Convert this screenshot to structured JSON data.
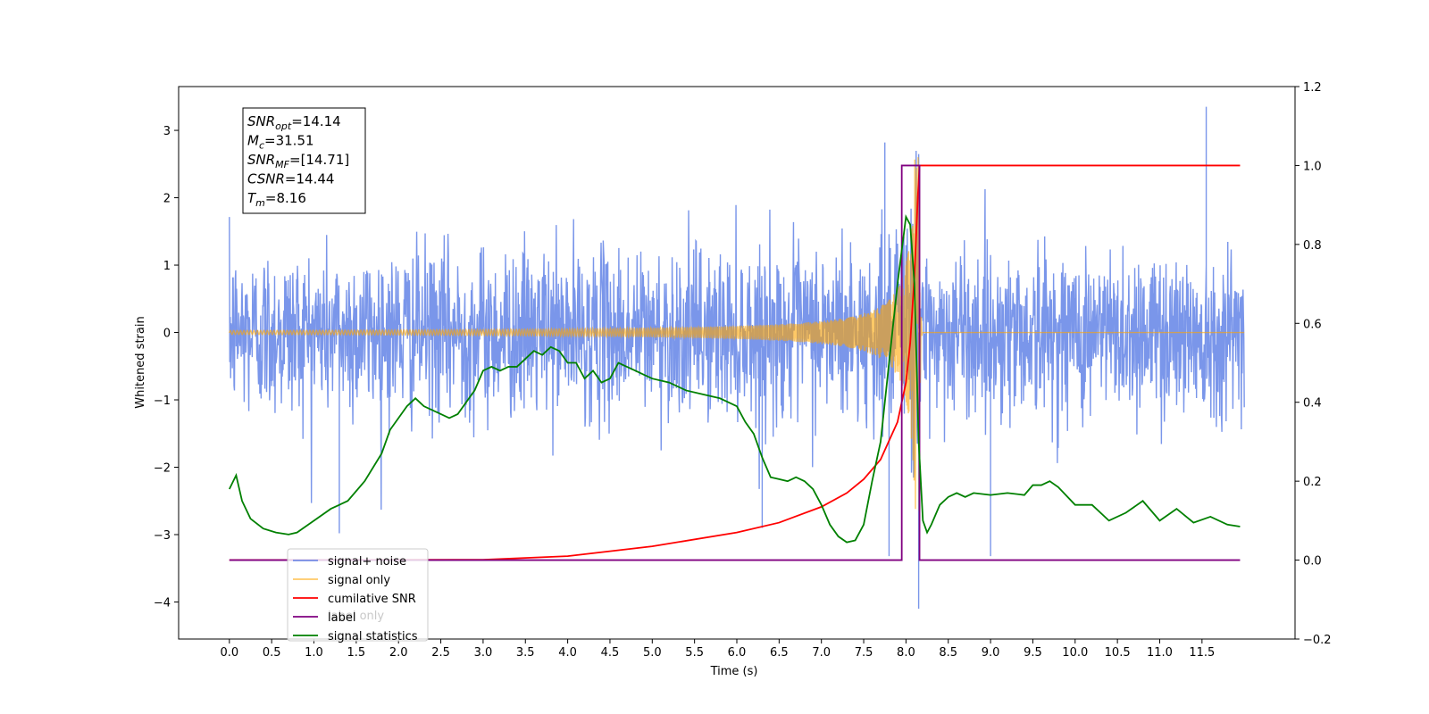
{
  "chart_data": {
    "type": "line",
    "xlabel": "Time (s)",
    "ylabel_left": "Whitened strain",
    "xlim": [
      -0.6,
      12.6
    ],
    "ylim_left": [
      -4.55,
      3.65
    ],
    "ylim_right": [
      -0.2,
      1.2
    ],
    "x_ticks": [
      "0.0",
      "0.5",
      "1.0",
      "1.5",
      "2.0",
      "2.5",
      "3.0",
      "3.5",
      "4.0",
      "4.5",
      "5.0",
      "5.5",
      "6.0",
      "6.5",
      "7.0",
      "7.5",
      "8.0",
      "8.5",
      "9.0",
      "9.5",
      "10.0",
      "10.5",
      "11.0",
      "11.5"
    ],
    "y_ticks_left": [
      "3",
      "2",
      "1",
      "0",
      "−1",
      "−2",
      "−3",
      "−4"
    ],
    "y_ticks_right": [
      "1.2",
      "1.0",
      "0.8",
      "0.6",
      "0.4",
      "0.2",
      "0.0",
      "−0.2"
    ],
    "colors": {
      "signal_noise": "#4169e1",
      "signal_only": "#ffa500",
      "cumulative_snr": "#ff0000",
      "label": "#800080",
      "signal_statistics": "#008000"
    },
    "noise_amplitude": 1.35,
    "noise_spikes": [
      {
        "x": 1.3,
        "y": -2.98
      },
      {
        "x": 7.8,
        "y": -3.32
      },
      {
        "x": 8.15,
        "y": -4.1
      },
      {
        "x": 9.0,
        "y": -3.32
      },
      {
        "x": 11.55,
        "y": 3.35
      },
      {
        "x": 7.75,
        "y": 2.82
      },
      {
        "x": 6.3,
        "y": -2.9
      }
    ],
    "signal_only": {
      "t_merger": 8.16,
      "base_amp": 0.03,
      "peak": 2.65
    },
    "cumulative_snr": {
      "x": [
        0.0,
        3.0,
        4.0,
        5.0,
        6.0,
        6.5,
        7.0,
        7.3,
        7.5,
        7.7,
        7.9,
        8.0,
        8.05,
        8.1,
        8.14,
        8.16,
        11.95
      ],
      "y": [
        0.0,
        0.001,
        0.01,
        0.035,
        0.07,
        0.095,
        0.135,
        0.17,
        0.205,
        0.255,
        0.35,
        0.45,
        0.55,
        0.72,
        0.92,
        1.0,
        1.0
      ]
    },
    "label": {
      "x": [
        0.0,
        7.95,
        7.95,
        8.16,
        8.16,
        11.95
      ],
      "y": [
        0.0,
        0.0,
        1.0,
        1.0,
        0.0,
        0.0
      ]
    },
    "signal_statistics": {
      "x": [
        0.0,
        0.08,
        0.15,
        0.25,
        0.4,
        0.55,
        0.7,
        0.8,
        0.9,
        1.0,
        1.2,
        1.4,
        1.6,
        1.8,
        1.9,
        2.0,
        2.1,
        2.2,
        2.3,
        2.5,
        2.6,
        2.7,
        2.8,
        2.9,
        3.0,
        3.1,
        3.2,
        3.3,
        3.4,
        3.5,
        3.6,
        3.7,
        3.8,
        3.9,
        4.0,
        4.1,
        4.2,
        4.3,
        4.4,
        4.5,
        4.6,
        4.7,
        4.8,
        4.9,
        5.0,
        5.2,
        5.4,
        5.6,
        5.8,
        6.0,
        6.1,
        6.2,
        6.3,
        6.4,
        6.5,
        6.6,
        6.7,
        6.8,
        6.9,
        7.0,
        7.1,
        7.2,
        7.3,
        7.4,
        7.5,
        7.6,
        7.7,
        7.8,
        7.9,
        8.0,
        8.05,
        8.1,
        8.15,
        8.2,
        8.25,
        8.3,
        8.4,
        8.5,
        8.6,
        8.7,
        8.8,
        9.0,
        9.2,
        9.4,
        9.5,
        9.6,
        9.7,
        9.8,
        10.0,
        10.2,
        10.4,
        10.6,
        10.8,
        11.0,
        11.2,
        11.4,
        11.6,
        11.8,
        11.95
      ],
      "y": [
        0.18,
        0.215,
        0.15,
        0.105,
        0.08,
        0.07,
        0.065,
        0.07,
        0.085,
        0.1,
        0.13,
        0.15,
        0.2,
        0.27,
        0.33,
        0.36,
        0.39,
        0.41,
        0.39,
        0.37,
        0.36,
        0.37,
        0.4,
        0.43,
        0.48,
        0.49,
        0.48,
        0.49,
        0.49,
        0.51,
        0.53,
        0.52,
        0.54,
        0.53,
        0.5,
        0.5,
        0.46,
        0.48,
        0.45,
        0.46,
        0.5,
        0.49,
        0.48,
        0.47,
        0.46,
        0.45,
        0.43,
        0.42,
        0.41,
        0.39,
        0.35,
        0.32,
        0.26,
        0.21,
        0.205,
        0.2,
        0.21,
        0.2,
        0.18,
        0.14,
        0.09,
        0.06,
        0.045,
        0.05,
        0.09,
        0.2,
        0.3,
        0.5,
        0.7,
        0.87,
        0.85,
        0.7,
        0.3,
        0.1,
        0.07,
        0.09,
        0.14,
        0.16,
        0.17,
        0.16,
        0.17,
        0.165,
        0.17,
        0.165,
        0.19,
        0.19,
        0.2,
        0.185,
        0.14,
        0.14,
        0.1,
        0.12,
        0.15,
        0.1,
        0.13,
        0.095,
        0.11,
        0.09,
        0.085
      ]
    },
    "legend": {
      "items": [
        {
          "key": "signal_noise",
          "label": "signal+ noise"
        },
        {
          "key": "signal_only",
          "label": "signal only"
        },
        {
          "key": "cumulative_snr",
          "label": "cumilative SNR"
        },
        {
          "key": "label",
          "label": "label"
        },
        {
          "key": "signal_statistics",
          "label": "signal statistics"
        }
      ],
      "ghost_label": "label only",
      "placement": "lower-left"
    },
    "annotation": {
      "lines": [
        {
          "var": "SNR",
          "sub": "opt",
          "value": "=14.14"
        },
        {
          "var": "M",
          "sub": "c",
          "value": "=31.51"
        },
        {
          "var": "SNR",
          "sub": "MF",
          "value": "=[14.71]"
        },
        {
          "var": "CSNR",
          "sub": "",
          "value": "=14.44"
        },
        {
          "var": "T",
          "sub": "m",
          "value": "=8.16"
        }
      ]
    }
  }
}
